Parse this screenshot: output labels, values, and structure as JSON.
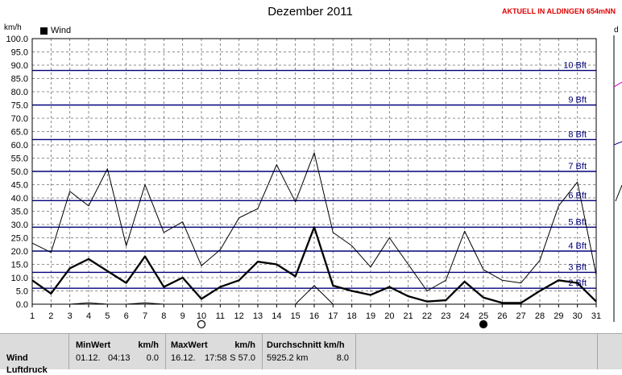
{
  "chart_data": {
    "type": "line",
    "title": "Dezember 2011",
    "ylabel": "km/h",
    "ylim": [
      0,
      100
    ],
    "y_ticks": [
      "0.0",
      "5.0",
      "10.0",
      "15.0",
      "20.0",
      "25.0",
      "30.0",
      "35.0",
      "40.0",
      "45.0",
      "50.0",
      "55.0",
      "60.0",
      "65.0",
      "70.0",
      "75.0",
      "80.0",
      "85.0",
      "90.0",
      "95.0",
      "100.0"
    ],
    "x": [
      1,
      2,
      3,
      4,
      5,
      6,
      7,
      8,
      9,
      10,
      11,
      12,
      13,
      14,
      15,
      16,
      17,
      18,
      19,
      20,
      21,
      22,
      23,
      24,
      25,
      26,
      27,
      28,
      29,
      30,
      31
    ],
    "legend": "Wind",
    "series": [
      {
        "name": "Wind",
        "style": "thick",
        "values": [
          9,
          4,
          13.5,
          17,
          12.5,
          8,
          18,
          6.5,
          10,
          2,
          6.5,
          9,
          16,
          15,
          10.5,
          29,
          7,
          5,
          3.5,
          6.5,
          3,
          1,
          1.5,
          8.5,
          2.5,
          0.5,
          0.5,
          5,
          9,
          8,
          1
        ]
      },
      {
        "style": "thin",
        "values": [
          23,
          19.5,
          42.5,
          37,
          51,
          22,
          45,
          27,
          31,
          14.5,
          20.5,
          32.5,
          36,
          52.5,
          38.5,
          57,
          27,
          22,
          14,
          25,
          15,
          5,
          9,
          27.5,
          13,
          9,
          8,
          16.5,
          37,
          46,
          11
        ]
      },
      {
        "style": "thin",
        "values": [
          0,
          0,
          0,
          0.5,
          0,
          0,
          0.5,
          0,
          0,
          0,
          0,
          0,
          0,
          0,
          0,
          7,
          0,
          0,
          0,
          0,
          0,
          0,
          0,
          0,
          0,
          0,
          0,
          0,
          0,
          0,
          0
        ]
      }
    ],
    "beaufort_lines": [
      {
        "label": "2 Bft",
        "speed": 6
      },
      {
        "label": "3 Bft",
        "speed": 12
      },
      {
        "label": "4 Bft",
        "speed": 20
      },
      {
        "label": "5 Bft",
        "speed": 29
      },
      {
        "label": "6 Bft",
        "speed": 39
      },
      {
        "label": "7 Bft",
        "speed": 50
      },
      {
        "label": "8 Bft",
        "speed": 62
      },
      {
        "label": "9 Bft",
        "speed": 75
      },
      {
        "label": "10 Bft",
        "speed": 88
      }
    ],
    "moon_markers": [
      {
        "day": 10,
        "phase": "full"
      },
      {
        "day": 25,
        "phase": "new"
      }
    ],
    "grid": true
  },
  "header": {
    "title": "Dezember 2011",
    "notice": "AKTUELL IN ALDINGEN 654mNN",
    "unit": "km/h",
    "legend_label": "Wind",
    "edge_label": "d"
  },
  "stats": {
    "row_label": "Wind",
    "row_label_2": "Luftdruck",
    "min": {
      "header": "MinWert",
      "unit": "km/h",
      "date": "01.12.",
      "time": "04:13",
      "value": "0.0"
    },
    "max": {
      "header": "MaxWert",
      "unit": "km/h",
      "date": "16.12.",
      "time": "17:58",
      "value": "S 57.0"
    },
    "avg": {
      "header": "Durchschnitt km/h",
      "distance": "5925.2 km",
      "value": "8.0"
    }
  }
}
